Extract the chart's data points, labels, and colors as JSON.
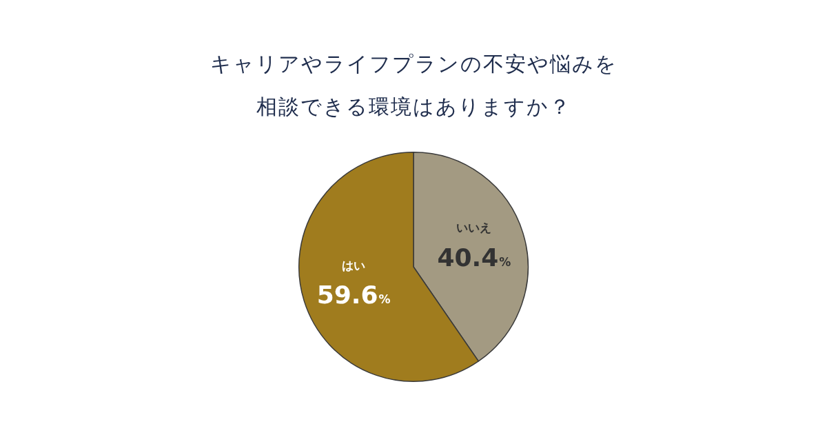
{
  "chart_data": {
    "type": "pie",
    "title": "キャリアやライフプランの不安や悩みを相談できる環境はありますか？",
    "categories": [
      "いいえ",
      "はい"
    ],
    "values": [
      40.4,
      59.6
    ],
    "colors": [
      "#a39a82",
      "#a07c1e"
    ],
    "value_labels": [
      "40.4%",
      "59.6%"
    ],
    "legend": false
  }
}
